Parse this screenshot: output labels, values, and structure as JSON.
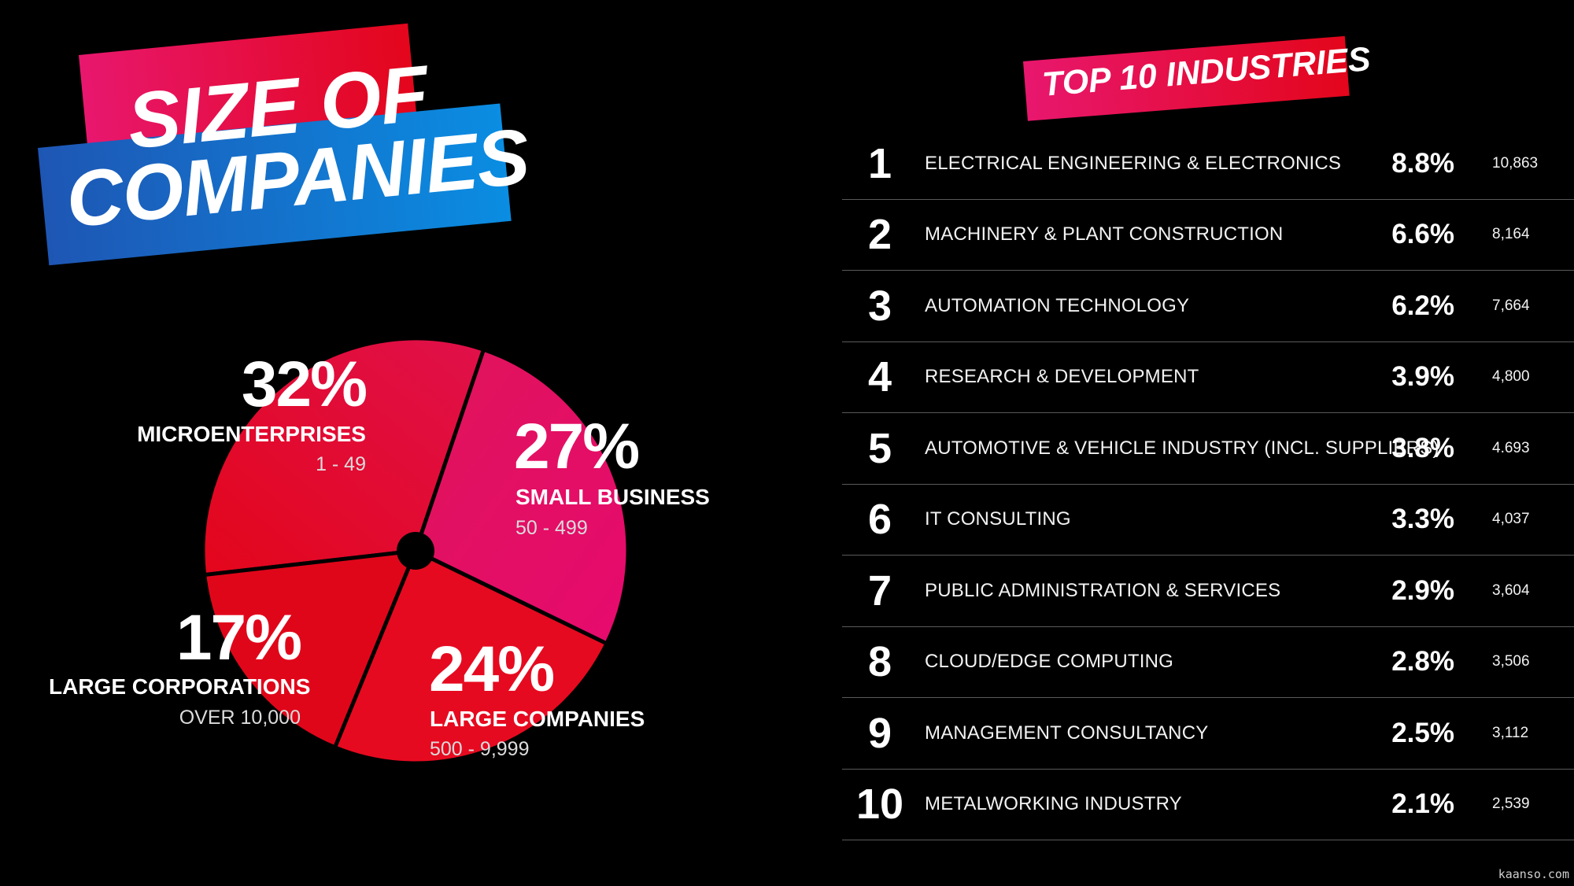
{
  "size_section": {
    "title_line1": "SIZE OF",
    "title_line2": "COMPANIES"
  },
  "industries_section": {
    "title": "TOP 10 INDUSTRIES"
  },
  "colors": {
    "pie_micro": "#e3061b",
    "pie_small": "#e2185f",
    "pie_large_companies": "#e60a20",
    "pie_large_corporations": "#e0061a",
    "banner_pink": "#e8176e",
    "banner_red": "#e3061b",
    "banner_blue": "#1e56b4",
    "background": "#000000"
  },
  "chart_data": [
    {
      "type": "pie",
      "slices": [
        {
          "label": "MICROENTERPRISES",
          "range": "1 - 49",
          "value": 32,
          "value_label": "32%"
        },
        {
          "label": "SMALL BUSINESS",
          "range": "50 - 499",
          "value": 27,
          "value_label": "27%"
        },
        {
          "label": "LARGE COMPANIES",
          "range": "500 - 9,999",
          "value": 24,
          "value_label": "24%"
        },
        {
          "label": "LARGE CORPORATIONS",
          "range": "OVER 10,000",
          "value": 17,
          "value_label": "17%"
        }
      ]
    },
    {
      "type": "table",
      "columns": [
        "rank",
        "industry",
        "percent",
        "count"
      ],
      "rows": [
        {
          "rank": "1",
          "industry": "ELECTRICAL ENGINEERING & ELECTRONICS",
          "percent": "8.8%",
          "count": "10,863"
        },
        {
          "rank": "2",
          "industry": "MACHINERY & PLANT CONSTRUCTION",
          "percent": "6.6%",
          "count": "8,164"
        },
        {
          "rank": "3",
          "industry": "AUTOMATION TECHNOLOGY",
          "percent": "6.2%",
          "count": "7,664"
        },
        {
          "rank": "4",
          "industry": "RESEARCH & DEVELOPMENT",
          "percent": "3.9%",
          "count": "4,800"
        },
        {
          "rank": "5",
          "industry": "AUTOMOTIVE & VEHICLE INDUSTRY (INCL. SUPPLIERS)",
          "percent": "3.8%",
          "count": "4.693"
        },
        {
          "rank": "6",
          "industry": "IT CONSULTING",
          "percent": "3.3%",
          "count": "4,037"
        },
        {
          "rank": "7",
          "industry": "PUBLIC ADMINISTRATION & SERVICES",
          "percent": "2.9%",
          "count": "3,604"
        },
        {
          "rank": "8",
          "industry": "CLOUD/EDGE COMPUTING",
          "percent": "2.8%",
          "count": "3,506"
        },
        {
          "rank": "9",
          "industry": "MANAGEMENT CONSULTANCY",
          "percent": "2.5%",
          "count": "3,112"
        },
        {
          "rank": "10",
          "industry": "METALWORKING INDUSTRY",
          "percent": "2.1%",
          "count": "2,539"
        }
      ]
    }
  ],
  "watermark": "kaanso.com"
}
